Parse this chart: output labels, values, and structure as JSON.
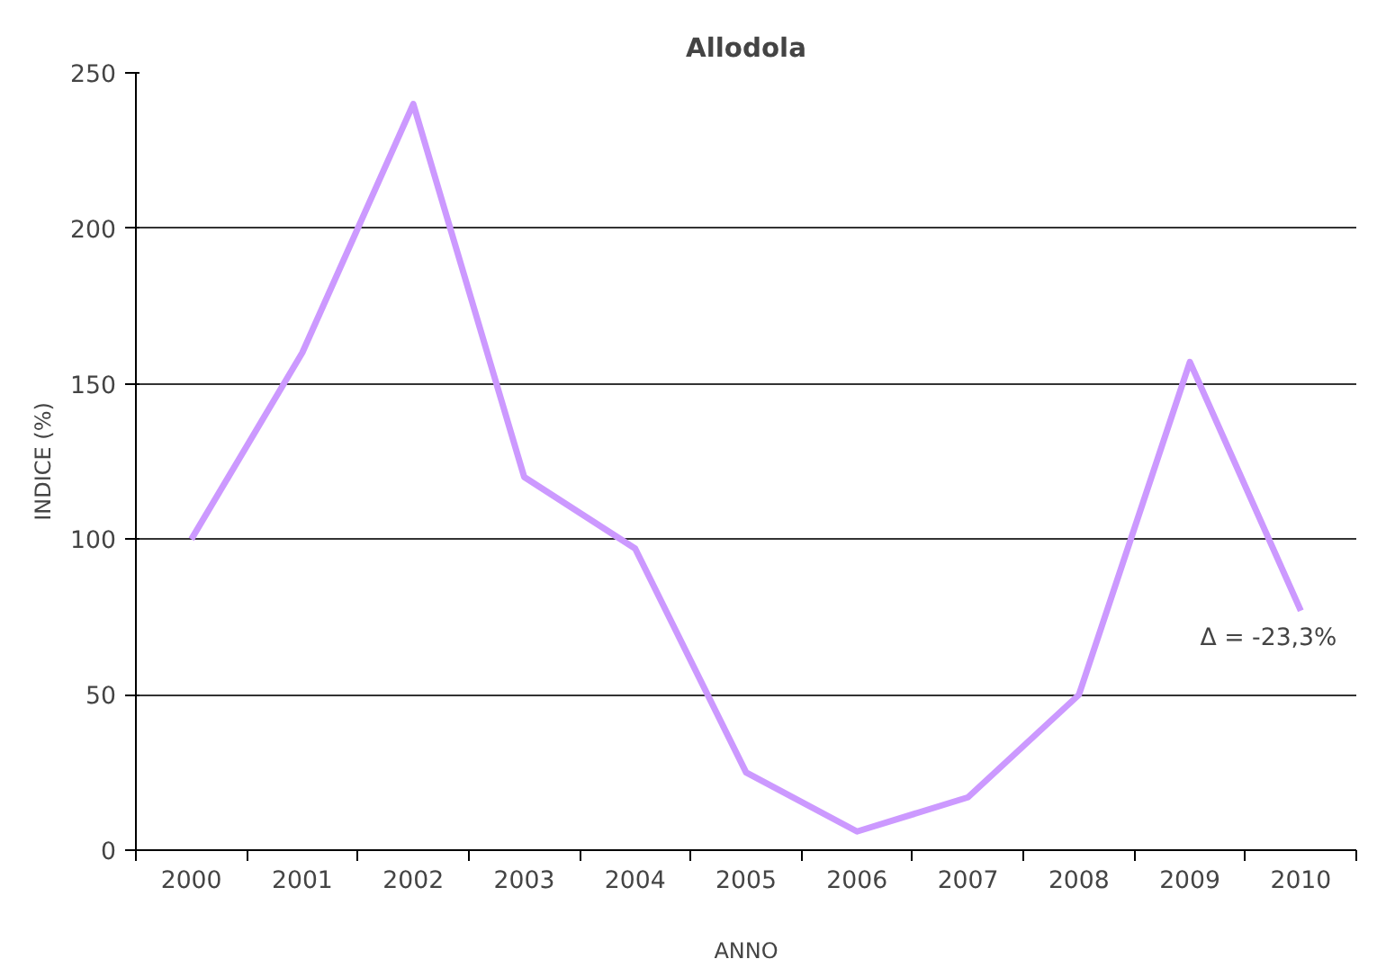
{
  "chart_data": {
    "type": "line",
    "title": "Allodola",
    "xlabel": "ANNO",
    "ylabel": "INDICE (%)",
    "categories": [
      "2000",
      "2001",
      "2002",
      "2003",
      "2004",
      "2005",
      "2006",
      "2007",
      "2008",
      "2009",
      "2010"
    ],
    "series": [
      {
        "color": "#cc99ff",
        "values": [
          100,
          160,
          240,
          120,
          97,
          25,
          6,
          17,
          50,
          157,
          77
        ]
      }
    ],
    "ylim": [
      0,
      250
    ],
    "yticks": [
      0,
      50,
      100,
      150,
      200,
      250
    ],
    "grid": "y",
    "marker": "none",
    "line_style": "solid",
    "annotations": [
      {
        "text": "Δ = -23,3%",
        "x": "2010",
        "y": 77
      }
    ]
  }
}
